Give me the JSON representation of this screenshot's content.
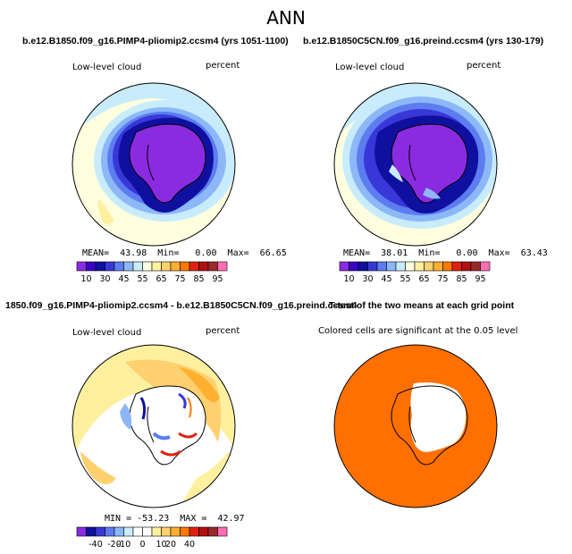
{
  "main_title": "ANN",
  "colors": {
    "abs_scale": [
      "#8a2be2",
      "#3a00c8",
      "#1010a0",
      "#3838d8",
      "#5c7cf0",
      "#8cb8f8",
      "#c8ecfc",
      "#ffffe0",
      "#fff0a0",
      "#ffd070",
      "#ffb030",
      "#ff7800",
      "#e02010",
      "#b01010",
      "#9a2a2a",
      "#ff6eb4"
    ],
    "diff_scale": [
      "#8a2be2",
      "#1010a0",
      "#3838d8",
      "#5c7cf0",
      "#8cb8f8",
      "#c8ecfc",
      "#ffffff",
      "#ffffff",
      "#fff0a0",
      "#ffd070",
      "#ffb030",
      "#ff7800",
      "#e02010",
      "#b01010",
      "#9a2a2a",
      "#ff6eb4"
    ],
    "ttest_fill": "#ff7000"
  },
  "panels": {
    "p1": {
      "title": "b.e12.B1850.f09_g16.PIMP4-pliomip2.ccsm4 (yrs 1051-1100)",
      "field": "Low-level cloud",
      "units": "percent",
      "stats": "MEAN=  43.98  Min=   0.00  Max=  66.65"
    },
    "p2": {
      "title": "b.e12.B1850C5CN.f09_g16.preind.ccsm4 (yrs 130-179)",
      "field": "Low-level cloud",
      "units": "percent",
      "stats": "MEAN=  38.01  Min=   0.00  Max=  63.43"
    },
    "p3": {
      "title": "1850.f09_g16.PIMP4-pliomip2.ccsm4 - b.e12.B1850C5CN.f09_g16.preind.ccsm4",
      "field": "Low-level cloud",
      "units": "percent",
      "stats": "MIN = -53.23  MAX =  42.97"
    },
    "p4": {
      "title": "T-test of the two means at each grid point",
      "note": "Colored cells are significant at the 0.05 level"
    }
  },
  "chart_data": [
    {
      "type": "heatmap",
      "title": "b.e12.B1850.f09_g16.PIMP4-pliomip2.ccsm4 (yrs 1051-1100)",
      "variable": "Low-level cloud",
      "units": "percent",
      "projection": "south polar stereographic",
      "stats": {
        "mean": 43.98,
        "min": 0.0,
        "max": 66.65
      },
      "colorbar_ticks": [
        10,
        30,
        45,
        55,
        65,
        75,
        85,
        95
      ]
    },
    {
      "type": "heatmap",
      "title": "b.e12.B1850C5CN.f09_g16.preind.ccsm4 (yrs 130-179)",
      "variable": "Low-level cloud",
      "units": "percent",
      "projection": "south polar stereographic",
      "stats": {
        "mean": 38.01,
        "min": 0.0,
        "max": 63.43
      },
      "colorbar_ticks": [
        10,
        30,
        45,
        55,
        65,
        75,
        85,
        95
      ]
    },
    {
      "type": "heatmap",
      "title": "1850.f09_g16.PIMP4-pliomip2.ccsm4 - b.e12.B1850C5CN.f09_g16.preind.ccsm4",
      "variable": "Low-level cloud",
      "units": "percent",
      "projection": "south polar stereographic",
      "stats": {
        "min": -53.23,
        "max": 42.97
      },
      "colorbar_ticks": [
        -40,
        -20,
        -10,
        0,
        10,
        20,
        40
      ]
    },
    {
      "type": "heatmap",
      "title": "T-test of the two means at each grid point",
      "note": "Colored cells are significant at the 0.05 level",
      "projection": "south polar stereographic"
    }
  ]
}
